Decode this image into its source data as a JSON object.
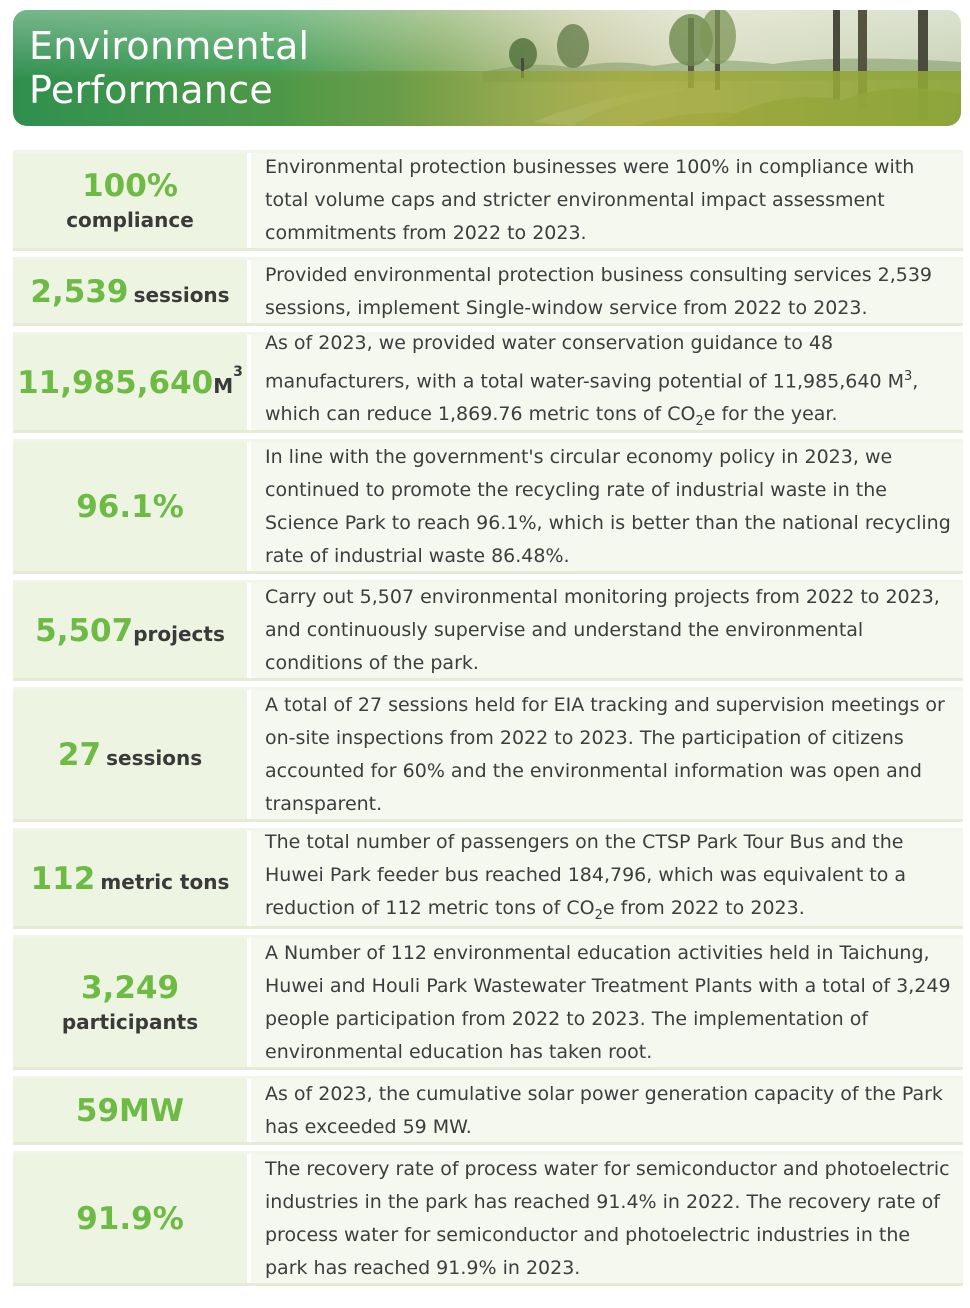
{
  "header": {
    "title_line1": "Environmental",
    "title_line2": "Performance"
  },
  "rows": [
    {
      "value": "100%",
      "unit": "compliance",
      "text": "Environmental protection businesses were 100% in compliance with total volume caps and stricter environmental impact assessment commitments from 2022 to 2023."
    },
    {
      "value": "2,539",
      "unit": "sessions",
      "text": "Provided environmental protection business consulting services 2,539 sessions, implement Single-window service from 2022 to 2023."
    },
    {
      "value": "11,985,640",
      "unit": "M",
      "unit_sup": "3",
      "text_a": "As of 2023, we provided water conservation guidance to 48 manufacturers, with a total water-saving potential of 11,985,640 M",
      "text_sup": "3",
      "text_b": ", which can reduce 1,869.76 metric tons of CO",
      "text_sub": "2",
      "text_c": "e for the year."
    },
    {
      "value": "96.1%",
      "unit": "",
      "text": "In line with the government's circular economy policy in 2023, we continued to promote the recycling rate of industrial waste in the Science Park to reach 96.1%, which is better than the national recycling rate of industrial waste 86.48%."
    },
    {
      "value": "5,507",
      "unit": "projects",
      "text": "Carry out 5,507 environmental monitoring projects from 2022 to 2023, and continuously supervise and understand the environmental conditions of the park."
    },
    {
      "value": "27",
      "unit": "sessions",
      "text": "A total of 27 sessions held for EIA tracking and supervision meetings or on-site inspections from 2022 to 2023. The participation of citizens accounted for 60% and the environmental information was open and transparent."
    },
    {
      "value": "112",
      "unit": "metric tons",
      "text_a": "The total number of passengers on the CTSP Park Tour Bus and the Huwei Park feeder bus reached 184,796, which was equivalent to a reduction of 112 metric tons of CO",
      "text_sub": "2",
      "text_b": "e from 2022 to 2023."
    },
    {
      "value": "3,249",
      "unit": "participants",
      "text": "A Number of 112 environmental education activities held in Taichung, Huwei and Houli Park Wastewater Treatment Plants with a total of 3,249 people participation from 2022 to 2023. The implementation of environmental education has taken root."
    },
    {
      "value": "59MW",
      "unit": "",
      "text": "As of 2023, the cumulative solar power generation capacity of the Park has exceeded 59 MW."
    },
    {
      "value": "91.9%",
      "unit": "",
      "text": "The recovery rate of process water for semiconductor and photoelectric industries in the park has reached 91.4% in 2022. The recovery rate of process water for semiconductor and photoelectric industries in the park has reached 91.9% in 2023."
    }
  ]
}
